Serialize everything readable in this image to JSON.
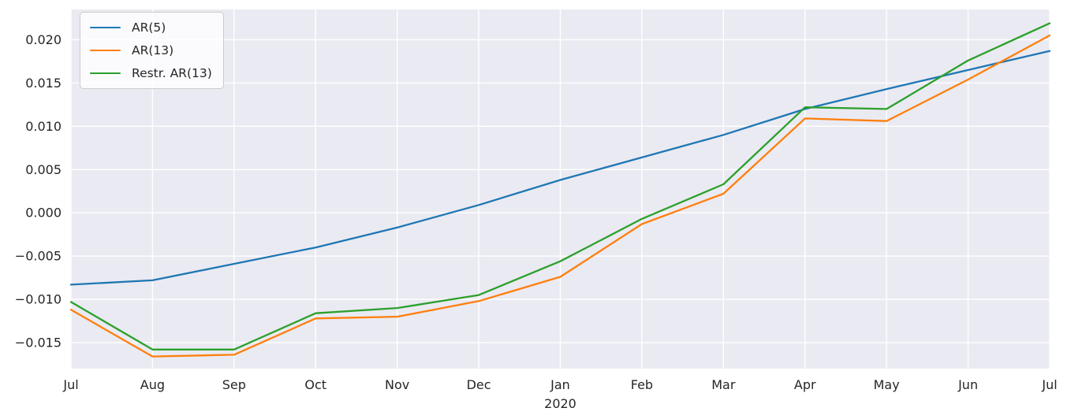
{
  "chart_data": {
    "type": "line",
    "title": "",
    "xlabel": "",
    "ylabel": "",
    "x_tick_labels": [
      "Jul",
      "Aug",
      "Sep",
      "Oct",
      "Nov",
      "Dec",
      "Jan",
      "Feb",
      "Mar",
      "Apr",
      "May",
      "Jun",
      "Jul"
    ],
    "x_sub_label": {
      "index": 6,
      "text": "2020"
    },
    "y_ticks": [
      0.02,
      0.015,
      0.01,
      0.005,
      0.0,
      -0.005,
      -0.01,
      -0.015
    ],
    "y_tick_labels": [
      "0.020",
      "0.015",
      "0.010",
      "0.005",
      "0.000",
      "−0.005",
      "−0.010",
      "−0.015"
    ],
    "ylim": [
      -0.018,
      0.0235
    ],
    "grid": true,
    "legend_position": "upper left",
    "plot_background": "#eaeaf2",
    "gridline_color": "#ffffff",
    "tick_color": "#262626",
    "series": [
      {
        "name": "AR(5)",
        "color": "#1f77b4",
        "values": [
          -0.0083,
          -0.0078,
          -0.0059,
          -0.004,
          -0.0017,
          0.0009,
          0.0038,
          0.0064,
          0.009,
          0.012,
          0.0143,
          0.0165,
          0.0187
        ]
      },
      {
        "name": "AR(13)",
        "color": "#ff7f0e",
        "values": [
          -0.0112,
          -0.0166,
          -0.0164,
          -0.0122,
          -0.012,
          -0.0102,
          -0.0074,
          -0.0013,
          0.0022,
          0.0109,
          0.0106,
          0.0154,
          0.0205
        ]
      },
      {
        "name": "Restr. AR(13)",
        "color": "#2ca02c",
        "values": [
          -0.0103,
          -0.0158,
          -0.0158,
          -0.0116,
          -0.011,
          -0.0095,
          -0.0056,
          -0.0007,
          0.0033,
          0.0122,
          0.012,
          0.0176,
          0.0219
        ]
      }
    ]
  }
}
